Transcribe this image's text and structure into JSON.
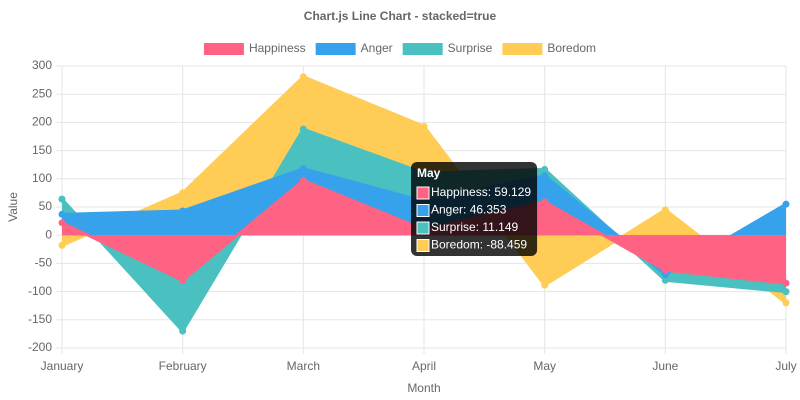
{
  "chart_data": {
    "type": "stacked-area",
    "title": "Chart.js Line Chart - stacked=true",
    "x_label": "Month",
    "y_label": "Value",
    "categories": [
      "January",
      "February",
      "March",
      "April",
      "May",
      "June",
      "July"
    ],
    "series": [
      {
        "name": "Happiness",
        "color": "#ff6384",
        "values": [
          22,
          -80,
          97,
          10,
          59.129,
          -62,
          -85
        ]
      },
      {
        "name": "Anger",
        "color": "#36a2eb",
        "values": [
          15,
          43,
          21,
          50,
          46.353,
          -8,
          55
        ]
      },
      {
        "name": "Surprise",
        "color": "#4bc0c0",
        "values": [
          27,
          -90,
          70,
          50,
          11.149,
          -10,
          -15
        ]
      },
      {
        "name": "Boredom",
        "color": "#ffcd56",
        "values": [
          -18,
          32,
          93,
          83,
          -88.459,
          45,
          -20
        ]
      }
    ],
    "ylim": [
      -200,
      300
    ],
    "yticks": [
      -200,
      -150,
      -100,
      -50,
      0,
      50,
      100,
      150,
      200,
      250,
      300
    ],
    "grid": true,
    "legend": "top",
    "tooltip_index": 4
  }
}
